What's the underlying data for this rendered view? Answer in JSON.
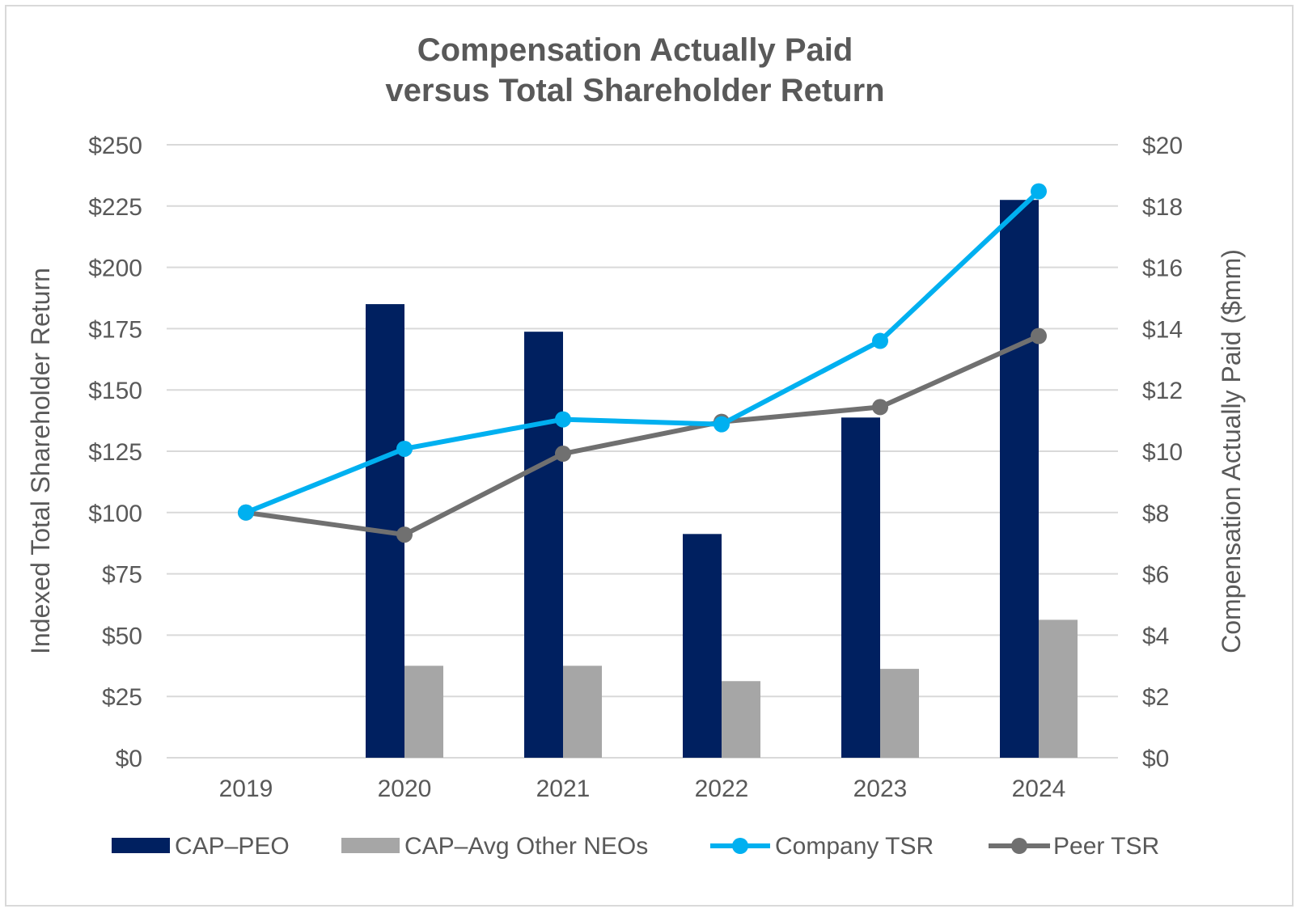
{
  "chart_data": {
    "type": "bar",
    "title": [
      "Compensation Actually Paid",
      "versus Total Shareholder Return"
    ],
    "categories": [
      "2019",
      "2020",
      "2021",
      "2022",
      "2023",
      "2024"
    ],
    "y_left": {
      "label": "Indexed Total Shareholder Return",
      "ylim": [
        0,
        250
      ],
      "ticks": [
        0,
        25,
        50,
        75,
        100,
        125,
        150,
        175,
        200,
        225,
        250
      ],
      "tick_labels": [
        "$0",
        "$25",
        "$50",
        "$75",
        "$100",
        "$125",
        "$150",
        "$175",
        "$200",
        "$225",
        "$250"
      ]
    },
    "y_right": {
      "label": "Compensation Actually Paid ($mm)",
      "ylim": [
        0,
        20
      ],
      "ticks": [
        0,
        2,
        4,
        6,
        8,
        10,
        12,
        14,
        16,
        18,
        20
      ],
      "tick_labels": [
        "$0",
        "$2",
        "$4",
        "$6",
        "$8",
        "$10",
        "$12",
        "$14",
        "$16",
        "$18",
        "$20"
      ]
    },
    "gridlines": true,
    "legend_position": "bottom",
    "series": [
      {
        "name": "CAP–PEO",
        "kind": "bar",
        "axis": "right",
        "color": "#002060",
        "values": [
          null,
          14.8,
          13.9,
          7.3,
          11.1,
          18.2
        ]
      },
      {
        "name": "CAP–Avg Other NEOs",
        "kind": "bar",
        "axis": "right",
        "color": "#a6a6a6",
        "values": [
          null,
          3.0,
          3.0,
          2.5,
          2.9,
          4.5
        ]
      },
      {
        "name": "Company TSR",
        "kind": "line",
        "axis": "left",
        "color": "#00b0f0",
        "values": [
          100,
          126,
          138,
          136,
          170,
          231
        ]
      },
      {
        "name": "Peer TSR",
        "kind": "line",
        "axis": "left",
        "color": "#707070",
        "values": [
          100,
          91,
          124,
          137,
          143,
          172
        ]
      }
    ]
  }
}
